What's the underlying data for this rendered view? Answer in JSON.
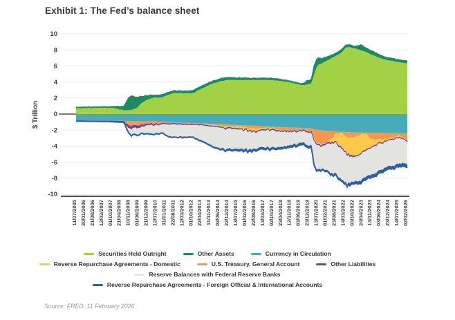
{
  "title": "Exhibit 1: The Fed’s balance sheet",
  "source": "Source: FRED, 11 February 2026",
  "chart_data": {
    "type": "area",
    "stacked": true,
    "title": "Exhibit 1: The Fed’s balance sheet",
    "ylabel": "$ Trillion",
    "ylim": [
      -10,
      10
    ],
    "yticks": [
      10,
      8,
      6,
      4,
      2,
      0,
      -2,
      -4,
      -6,
      -8,
      -10
    ],
    "grid": "horizontal-light",
    "legend_position": "bottom-center",
    "xtick_labels": [
      "11/07/2005",
      "30/01/2006",
      "21/08/2006",
      "12/03/2007",
      "01/10/2007",
      "21/04/2008",
      "10/11/2008",
      "01/06/2009",
      "21/12/2009",
      "12/07/2010",
      "31/01/2011",
      "22/08/2011",
      "12/03/2012",
      "01/10/2012",
      "22/04/2013",
      "11/11/2013",
      "02/06/2014",
      "22/12/2014",
      "13/07/2015",
      "01/02/2016",
      "22/08/2016",
      "13/03/2017",
      "02/10/2017",
      "23/04/2018",
      "12/11/2018",
      "03/06/2019",
      "23/12/2019",
      "13/07/2020",
      "01/02/2021",
      "23/08/2021",
      "14/03/2022",
      "03/10/2022",
      "24/04/2023",
      "13/11/2023",
      "03/06/2024",
      "23/12/2024",
      "14/07/2025",
      "02/02/2026"
    ],
    "x_years": [
      2005.53,
      2006.0,
      2006.5,
      2007.0,
      2007.5,
      2007.9,
      2008.2,
      2008.5,
      2008.8,
      2008.95,
      2009.3,
      2009.6,
      2010.0,
      2010.4,
      2010.8,
      2011.2,
      2011.6,
      2012.0,
      2012.4,
      2012.8,
      2013.2,
      2013.6,
      2014.0,
      2014.4,
      2014.8,
      2015.3,
      2015.8,
      2016.3,
      2016.8,
      2017.3,
      2017.8,
      2018.3,
      2018.8,
      2019.2,
      2019.6,
      2019.9,
      2020.15,
      2020.3,
      2020.5,
      2020.8,
      2021.1,
      2021.4,
      2021.7,
      2022.0,
      2022.3,
      2022.6,
      2022.9,
      2023.2,
      2023.5,
      2023.8,
      2024.1,
      2024.4,
      2024.8,
      2025.2,
      2025.6,
      2025.9,
      2026.08
    ],
    "series": [
      {
        "name": "Securities Held Outright",
        "side": "positive",
        "color": "#a2d145",
        "jitter": 0.03,
        "values": [
          0.74,
          0.75,
          0.76,
          0.78,
          0.79,
          0.75,
          0.59,
          0.48,
          0.49,
          0.49,
          0.76,
          1.37,
          1.84,
          2.05,
          2.05,
          2.35,
          2.64,
          2.6,
          2.58,
          2.6,
          3.04,
          3.45,
          3.78,
          4.05,
          4.22,
          4.24,
          4.24,
          4.24,
          4.25,
          4.25,
          4.22,
          4.09,
          3.96,
          3.76,
          3.6,
          3.66,
          3.88,
          5.0,
          6.1,
          6.35,
          6.65,
          7.0,
          7.3,
          7.7,
          8.35,
          8.3,
          8.15,
          7.95,
          7.75,
          7.45,
          7.2,
          6.97,
          6.75,
          6.6,
          6.45,
          6.35,
          6.3
        ]
      },
      {
        "name": "Other Assets",
        "side": "positive",
        "color": "#1f8a60",
        "jitter": 0.04,
        "values": [
          0.1,
          0.1,
          0.1,
          0.1,
          0.1,
          0.18,
          0.32,
          0.43,
          1.55,
          1.77,
          1.3,
          0.78,
          0.46,
          0.28,
          0.33,
          0.3,
          0.24,
          0.27,
          0.28,
          0.31,
          0.29,
          0.3,
          0.28,
          0.3,
          0.28,
          0.26,
          0.24,
          0.23,
          0.2,
          0.2,
          0.2,
          0.18,
          0.15,
          0.15,
          0.16,
          0.5,
          0.42,
          1.0,
          0.9,
          0.55,
          0.45,
          0.38,
          0.35,
          0.33,
          0.28,
          0.27,
          0.26,
          0.65,
          0.5,
          0.45,
          0.42,
          0.35,
          0.3,
          0.28,
          0.27,
          0.28,
          0.3
        ]
      },
      {
        "name": "Currency in Circulation",
        "side": "negative",
        "color": "#47abbb",
        "jitter": 0.01,
        "values": [
          0.77,
          0.78,
          0.79,
          0.8,
          0.81,
          0.82,
          0.82,
          0.83,
          0.86,
          0.88,
          0.89,
          0.9,
          0.92,
          0.93,
          0.96,
          1.0,
          1.03,
          1.07,
          1.1,
          1.13,
          1.16,
          1.19,
          1.23,
          1.27,
          1.31,
          1.36,
          1.4,
          1.44,
          1.48,
          1.53,
          1.59,
          1.63,
          1.68,
          1.7,
          1.74,
          1.76,
          1.81,
          1.89,
          1.97,
          2.04,
          2.09,
          2.14,
          2.18,
          2.21,
          2.25,
          2.28,
          2.3,
          2.3,
          2.32,
          2.33,
          2.34,
          2.35,
          2.37,
          2.38,
          2.4,
          2.42,
          2.43
        ]
      },
      {
        "name": "U.S. Treasury, General Account",
        "side": "negative",
        "color": "#f49850",
        "jitter": 0.12,
        "values": [
          0.01,
          0.01,
          0.01,
          0.01,
          0.01,
          0.01,
          0.02,
          0.02,
          0.56,
          0.56,
          0.45,
          0.4,
          0.22,
          0.24,
          0.21,
          0.12,
          0.06,
          0.09,
          0.1,
          0.07,
          0.09,
          0.1,
          0.12,
          0.13,
          0.15,
          0.2,
          0.15,
          0.3,
          0.4,
          0.2,
          0.18,
          0.35,
          0.35,
          0.3,
          0.23,
          0.38,
          0.4,
          1.0,
          1.65,
          1.7,
          1.45,
          0.85,
          0.3,
          0.1,
          0.7,
          0.6,
          0.55,
          0.3,
          0.1,
          0.75,
          0.8,
          0.75,
          0.75,
          0.55,
          0.3,
          0.65,
          0.8
        ]
      },
      {
        "name": "Reverse Repurchase Agreements - Domestic",
        "side": "negative",
        "color": "#fdc94b",
        "jitter": 0.1,
        "values": [
          0.01,
          0.01,
          0.01,
          0.01,
          0.01,
          0.01,
          0.01,
          0.01,
          0.02,
          0.02,
          0.02,
          0.02,
          0.01,
          0.01,
          0.01,
          0.01,
          0.01,
          0.01,
          0.01,
          0.01,
          0.02,
          0.05,
          0.1,
          0.13,
          0.2,
          0.15,
          0.25,
          0.2,
          0.25,
          0.15,
          0.12,
          0.05,
          0.04,
          0.03,
          0.02,
          0.04,
          0.02,
          0.2,
          0.1,
          0.1,
          0.05,
          0.5,
          1.1,
          1.75,
          1.9,
          2.2,
          2.35,
          2.3,
          2.05,
          1.1,
          0.6,
          0.4,
          0.15,
          0.15,
          0.2,
          0.05,
          0.03
        ]
      },
      {
        "name": "Other Liabilities",
        "side": "negative",
        "color": "#6f4596",
        "jitter": 0.06,
        "values": [
          0.05,
          0.05,
          0.05,
          0.05,
          0.05,
          0.06,
          0.06,
          0.07,
          0.3,
          0.33,
          0.28,
          0.23,
          0.18,
          0.15,
          0.12,
          0.1,
          0.1,
          0.1,
          0.09,
          0.09,
          0.09,
          0.09,
          0.09,
          0.09,
          0.1,
          0.1,
          0.1,
          0.1,
          0.1,
          0.1,
          0.1,
          0.1,
          0.1,
          0.1,
          0.1,
          0.1,
          0.1,
          0.12,
          0.12,
          0.12,
          0.12,
          0.12,
          0.12,
          0.12,
          0.12,
          0.12,
          0.12,
          0.1,
          0.1,
          0.09,
          0.08,
          0.08,
          0.08,
          0.08,
          0.08,
          0.08,
          0.08
        ]
      },
      {
        "name": "Reserve Balances with Federal Reserve Banks",
        "side": "negative",
        "color": "#e3e4e0",
        "jitter": 0.05,
        "values": [
          0.02,
          0.02,
          0.02,
          0.02,
          0.02,
          0.03,
          0.03,
          0.02,
          0.6,
          0.78,
          0.88,
          0.8,
          1.08,
          1.07,
          1.0,
          1.45,
          1.62,
          1.55,
          1.49,
          1.52,
          1.86,
          2.1,
          2.44,
          2.62,
          2.6,
          2.52,
          2.44,
          2.3,
          2.06,
          2.22,
          2.16,
          1.92,
          1.72,
          1.56,
          1.46,
          1.62,
          1.66,
          2.9,
          3.1,
          2.8,
          3.3,
          3.8,
          3.9,
          3.85,
          3.7,
          3.2,
          3.05,
          3.4,
          3.25,
          3.35,
          3.5,
          3.35,
          3.25,
          3.3,
          3.2,
          3.0,
          2.85
        ]
      },
      {
        "name": "Reverse Repurchase Agreements - Foreign Official & International Accounts",
        "side": "negative",
        "color": "#2f5fa0",
        "jitter": 0.02,
        "values": [
          0.03,
          0.03,
          0.03,
          0.04,
          0.04,
          0.05,
          0.06,
          0.08,
          0.1,
          0.1,
          0.1,
          0.1,
          0.1,
          0.1,
          0.1,
          0.1,
          0.1,
          0.1,
          0.1,
          0.11,
          0.12,
          0.13,
          0.14,
          0.15,
          0.18,
          0.22,
          0.25,
          0.25,
          0.25,
          0.24,
          0.23,
          0.24,
          0.25,
          0.27,
          0.28,
          0.27,
          0.28,
          0.3,
          0.22,
          0.2,
          0.2,
          0.22,
          0.25,
          0.26,
          0.28,
          0.3,
          0.31,
          0.34,
          0.35,
          0.36,
          0.36,
          0.37,
          0.38,
          0.38,
          0.39,
          0.4,
          0.4
        ]
      }
    ],
    "legend_rows": [
      [
        0,
        1,
        2
      ],
      [
        4,
        3,
        5
      ],
      [
        6
      ],
      [
        7
      ]
    ],
    "colors": {
      "grid": "#ebebeb",
      "axis": "#4f4f4f",
      "tick_text": "#3d3d3d",
      "title_text": "#383838",
      "source_text": "#9a9a9a"
    }
  }
}
